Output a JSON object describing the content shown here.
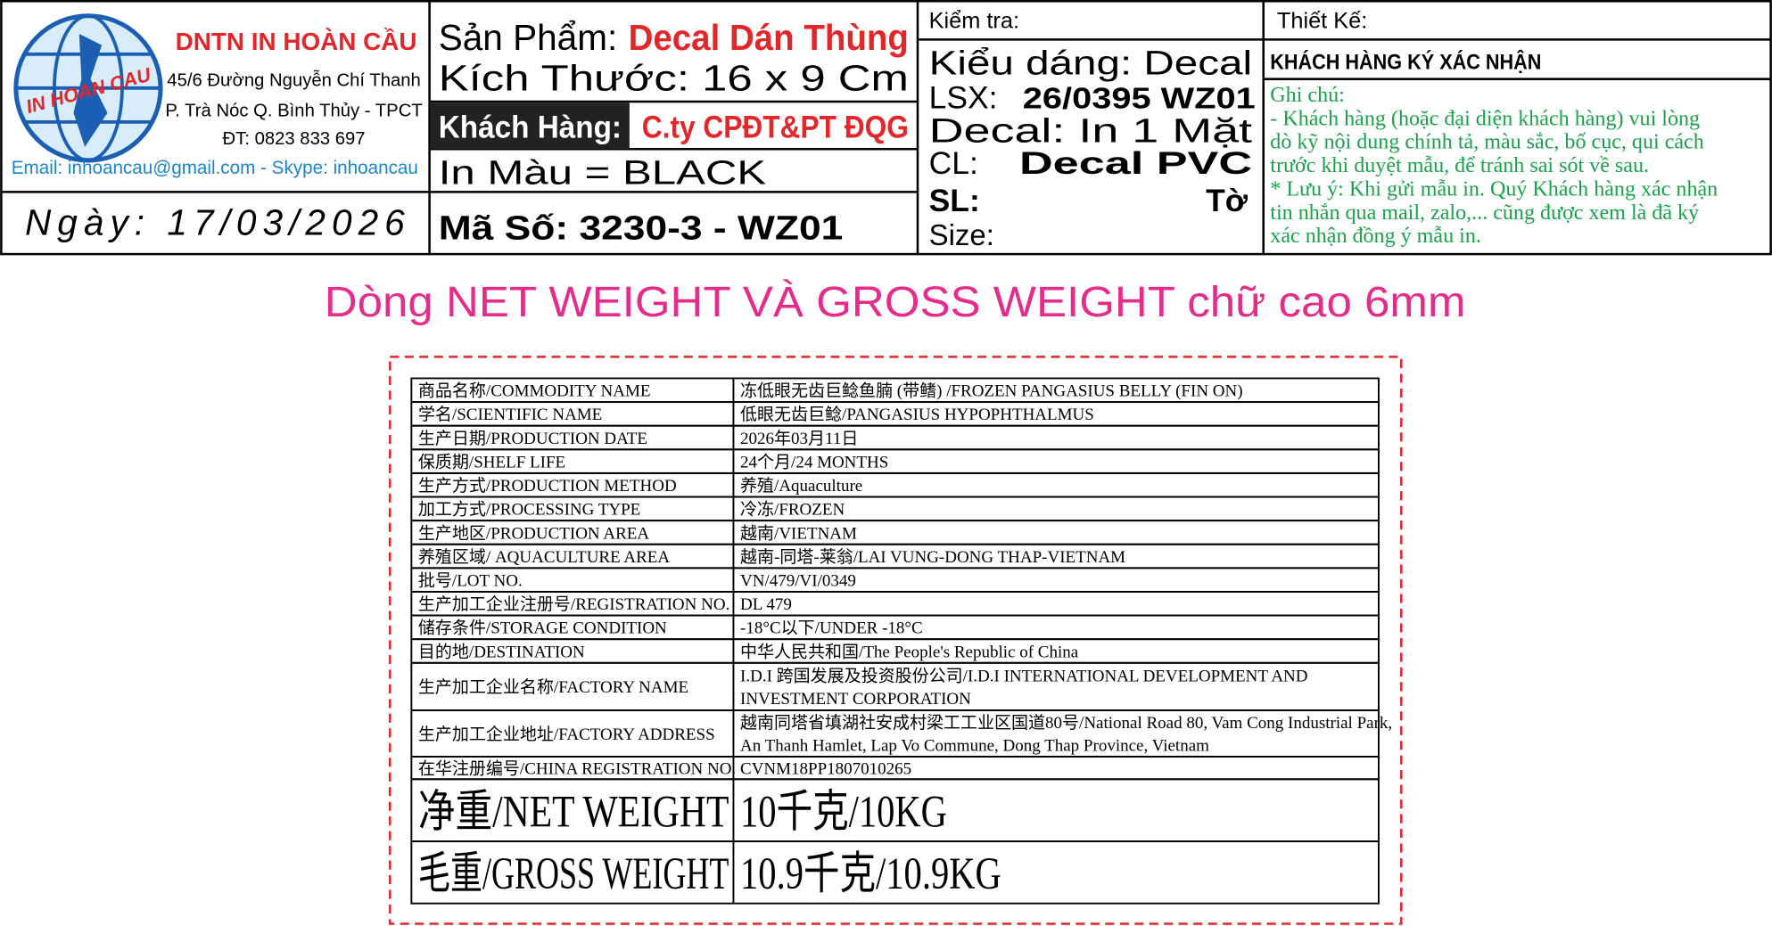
{
  "company": {
    "name": "DNTN IN HOÀN CẦU",
    "address1": "45/6 Đường Nguyễn Chí Thanh",
    "address2": "P. Trà Nóc Q. Bình Thủy - TPCT",
    "phone": "ĐT: 0823 833 697",
    "contact": "Email: inhoancau@gmail.com - Skype: inhoancau",
    "logo_text": "IN HOAN CAU"
  },
  "date": "Ngày: 17/03/2026",
  "product": {
    "label": "Sản Phẩm:",
    "name": "Decal Dán Thùng",
    "size": "Kích Thước: 16 x 9 Cm",
    "customer_label": "Khách Hàng:",
    "customer": "C.ty CPĐT&PT ĐQG",
    "color": "In Màu = BLACK",
    "code": "Mã Số: 3230-3 - WZ01"
  },
  "check": {
    "title": "Kiểm tra:",
    "style": "Kiểu dáng: Decal",
    "lsx_label": "LSX:",
    "lsx": "26/0395 WZ01",
    "decal": "Decal: In 1 Mặt",
    "cl_label": "CL:",
    "cl": "Decal PVC",
    "sl_label": "SL:",
    "sl_unit": "Tờ",
    "size": "Size:"
  },
  "design": {
    "title": "Thiết Kế:",
    "confirm": "KHÁCH HÀNG KÝ XÁC NHẬN",
    "notes": [
      "Ghi chú:",
      "- Khách hàng (hoặc đại diện khách hàng) vui lòng",
      "dò kỹ nội dung chính tả, màu sắc, bố cục, qui cách",
      "trước khi duyệt mẫu, để tránh sai sót về sau.",
      "* Lưu ý: Khi gửi mẫu in. Quý Khách hàng xác nhận",
      "tin nhắn qua mail, zalo,... cũng được xem là đã ký",
      "xác nhận đồng ý mẫu in."
    ]
  },
  "instruction": "Dòng NET WEIGHT VÀ GROSS WEIGHT chữ cao 6mm",
  "table": {
    "rows": [
      {
        "label": "商品名称/COMMODITY NAME",
        "value": [
          "冻低眼无齿巨鲶鱼腩 (带鳍) /FROZEN PANGASIUS BELLY (FIN ON)"
        ]
      },
      {
        "label": "学名/SCIENTIFIC NAME",
        "value": [
          "低眼无齿巨鲶/PANGASIUS HYPOPHTHALMUS"
        ]
      },
      {
        "label": "生产日期/PRODUCTION DATE",
        "value": [
          "2026年03月11日"
        ]
      },
      {
        "label": "保质期/SHELF LIFE",
        "value": [
          "24个月/24 MONTHS"
        ]
      },
      {
        "label": "生产方式/PRODUCTION METHOD",
        "value": [
          "养殖/Aquaculture"
        ]
      },
      {
        "label": "加工方式/PROCESSING TYPE",
        "value": [
          "冷冻/FROZEN"
        ]
      },
      {
        "label": "生产地区/PRODUCTION AREA",
        "value": [
          "越南/VIETNAM"
        ]
      },
      {
        "label": "养殖区域/ AQUACULTURE AREA",
        "value": [
          "越南-同塔-莱翁/LAI VUNG-DONG THAP-VIETNAM"
        ]
      },
      {
        "label": "批号/LOT NO.",
        "value": [
          "VN/479/VI/0349"
        ]
      },
      {
        "label": "生产加工企业注册号/REGISTRATION NO.",
        "value": [
          "DL 479"
        ]
      },
      {
        "label": "储存条件/STORAGE CONDITION",
        "value": [
          "-18°C以下/UNDER -18°C"
        ]
      },
      {
        "label": "目的地/DESTINATION",
        "value": [
          "中华人民共和国/The People's Republic of China"
        ]
      },
      {
        "label": "生产加工企业名称/FACTORY NAME",
        "value": [
          "I.D.I  跨国发展及投资股份公司/I.D.I INTERNATIONAL DEVELOPMENT AND",
          "INVESTMENT CORPORATION"
        ]
      },
      {
        "label": "生产加工企业地址/FACTORY ADDRESS",
        "value": [
          "越南同塔省填湖社安成村梁工工业区国道80号/National Road 80, Vam Cong Industrial Park,",
          "An Thanh Hamlet, Lap Vo Commune, Dong Thap Province, Vietnam"
        ]
      },
      {
        "label": "在华注册编号/CHINA REGISTRATION NO.",
        "value": [
          "CVNM18PP1807010265"
        ]
      },
      {
        "label": "净重/NET WEIGHT",
        "value": [
          "10千克/10KG"
        ]
      },
      {
        "label": "毛重/GROSS WEIGHT",
        "value": [
          "10.9千克/10.9KG"
        ]
      }
    ]
  }
}
